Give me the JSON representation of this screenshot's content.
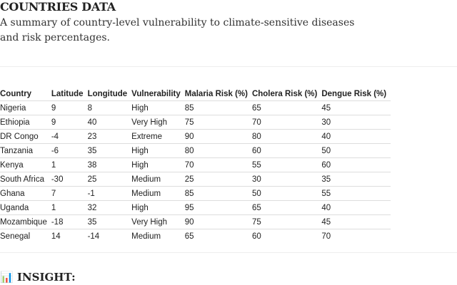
{
  "header": {
    "title": "COUNTRIES DATA",
    "subtitle": "A summary of country-level vulnerability to climate-sensitive diseases and risk percentages."
  },
  "table": {
    "columns": [
      "Country",
      "Latitude",
      "Longitude",
      "Vulnerability",
      "Malaria Risk (%)",
      "Cholera Risk (%)",
      "Dengue Risk (%)"
    ],
    "rows": [
      [
        "Nigeria",
        9,
        8,
        "High",
        85,
        65,
        45
      ],
      [
        "Ethiopia",
        9,
        40,
        "Very High",
        75,
        70,
        30
      ],
      [
        "DR Congo",
        -4,
        23,
        "Extreme",
        90,
        80,
        40
      ],
      [
        "Tanzania",
        -6,
        35,
        "High",
        80,
        60,
        50
      ],
      [
        "Kenya",
        1,
        38,
        "High",
        70,
        55,
        60
      ],
      [
        "South Africa",
        -30,
        25,
        "Medium",
        25,
        30,
        35
      ],
      [
        "Ghana",
        7,
        -1,
        "Medium",
        85,
        50,
        55
      ],
      [
        "Uganda",
        1,
        32,
        "High",
        95,
        65,
        40
      ],
      [
        "Mozambique",
        -18,
        35,
        "Very High",
        90,
        75,
        45
      ],
      [
        "Senegal",
        14,
        -14,
        "Medium",
        65,
        60,
        70
      ]
    ]
  },
  "insight": {
    "title": "📊 INSIGHT:"
  }
}
